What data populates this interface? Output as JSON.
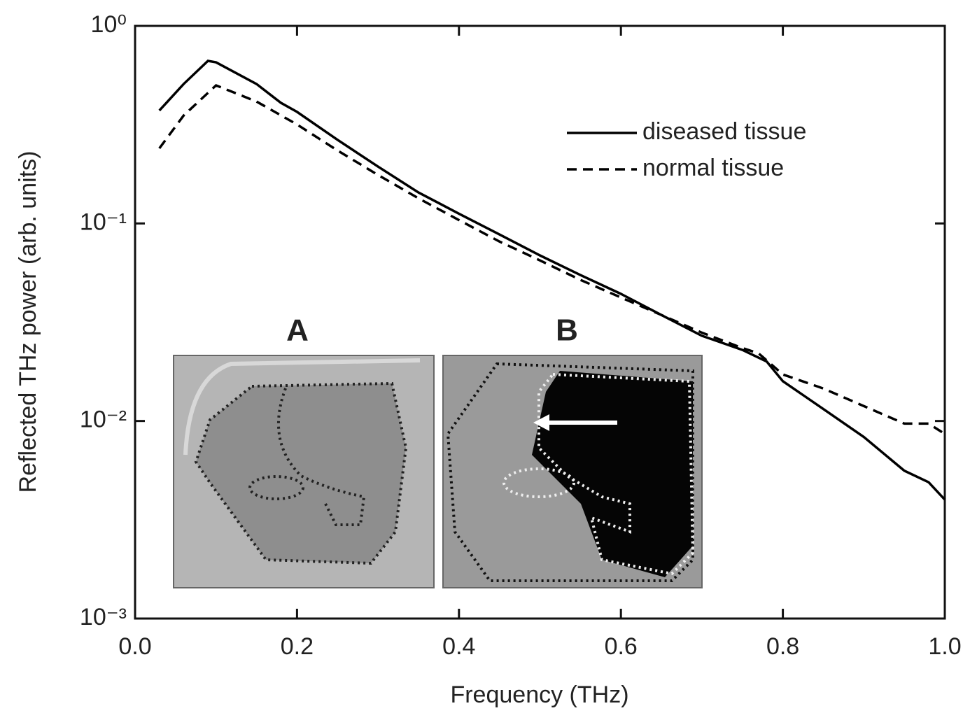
{
  "chart_data": {
    "type": "line",
    "xlabel": "Frequency (THz)",
    "ylabel": "Reflected THz power (arb. units)",
    "yscale": "log",
    "xlim": [
      0,
      1
    ],
    "ylim": [
      0.001,
      1
    ],
    "xticks": [
      {
        "value": 0,
        "label": "0.0"
      },
      0.2,
      0.4,
      0.6,
      0.8,
      {
        "value": 1,
        "label": "1.0"
      }
    ],
    "yticks": [
      {
        "value": 0.001,
        "label": "10⁻³"
      },
      {
        "value": 0.01,
        "label": "10⁻²"
      },
      {
        "value": 0.1,
        "label": "10⁻¹"
      },
      {
        "value": 1,
        "label": "10⁰"
      }
    ],
    "legend": "upper right",
    "inset_labels": [
      "A",
      "B"
    ],
    "series": [
      {
        "name": "diseased tissue",
        "color": "#000000",
        "linestyle": "solid",
        "x": [
          0.03,
          0.06,
          0.09,
          0.1,
          0.15,
          0.18,
          0.2,
          0.25,
          0.3,
          0.35,
          0.4,
          0.45,
          0.5,
          0.55,
          0.6,
          0.65,
          0.7,
          0.75,
          0.78,
          0.8,
          0.85,
          0.9,
          0.95,
          0.98,
          1.0
        ],
        "values": [
          0.373,
          0.508,
          0.665,
          0.654,
          0.508,
          0.408,
          0.367,
          0.265,
          0.194,
          0.1435,
          0.112,
          0.088,
          0.0689,
          0.0548,
          0.044,
          0.0344,
          0.027,
          0.0229,
          0.02,
          0.0159,
          0.0115,
          0.0083,
          0.0056,
          0.0049,
          0.004
        ]
      },
      {
        "name": "normal tissue",
        "color": "#000000",
        "linestyle": "dashed",
        "x": [
          0.03,
          0.06,
          0.1,
          0.15,
          0.2,
          0.25,
          0.3,
          0.35,
          0.4,
          0.45,
          0.5,
          0.55,
          0.6,
          0.65,
          0.7,
          0.75,
          0.77,
          0.8,
          0.85,
          0.9,
          0.95,
          0.98,
          1.0
        ],
        "values": [
          0.24,
          0.352,
          0.5,
          0.414,
          0.317,
          0.234,
          0.176,
          0.134,
          0.104,
          0.081,
          0.065,
          0.0518,
          0.0422,
          0.0344,
          0.028,
          0.0234,
          0.022,
          0.0172,
          0.0146,
          0.0119,
          0.0097,
          0.0097,
          0.0086
        ]
      }
    ]
  }
}
